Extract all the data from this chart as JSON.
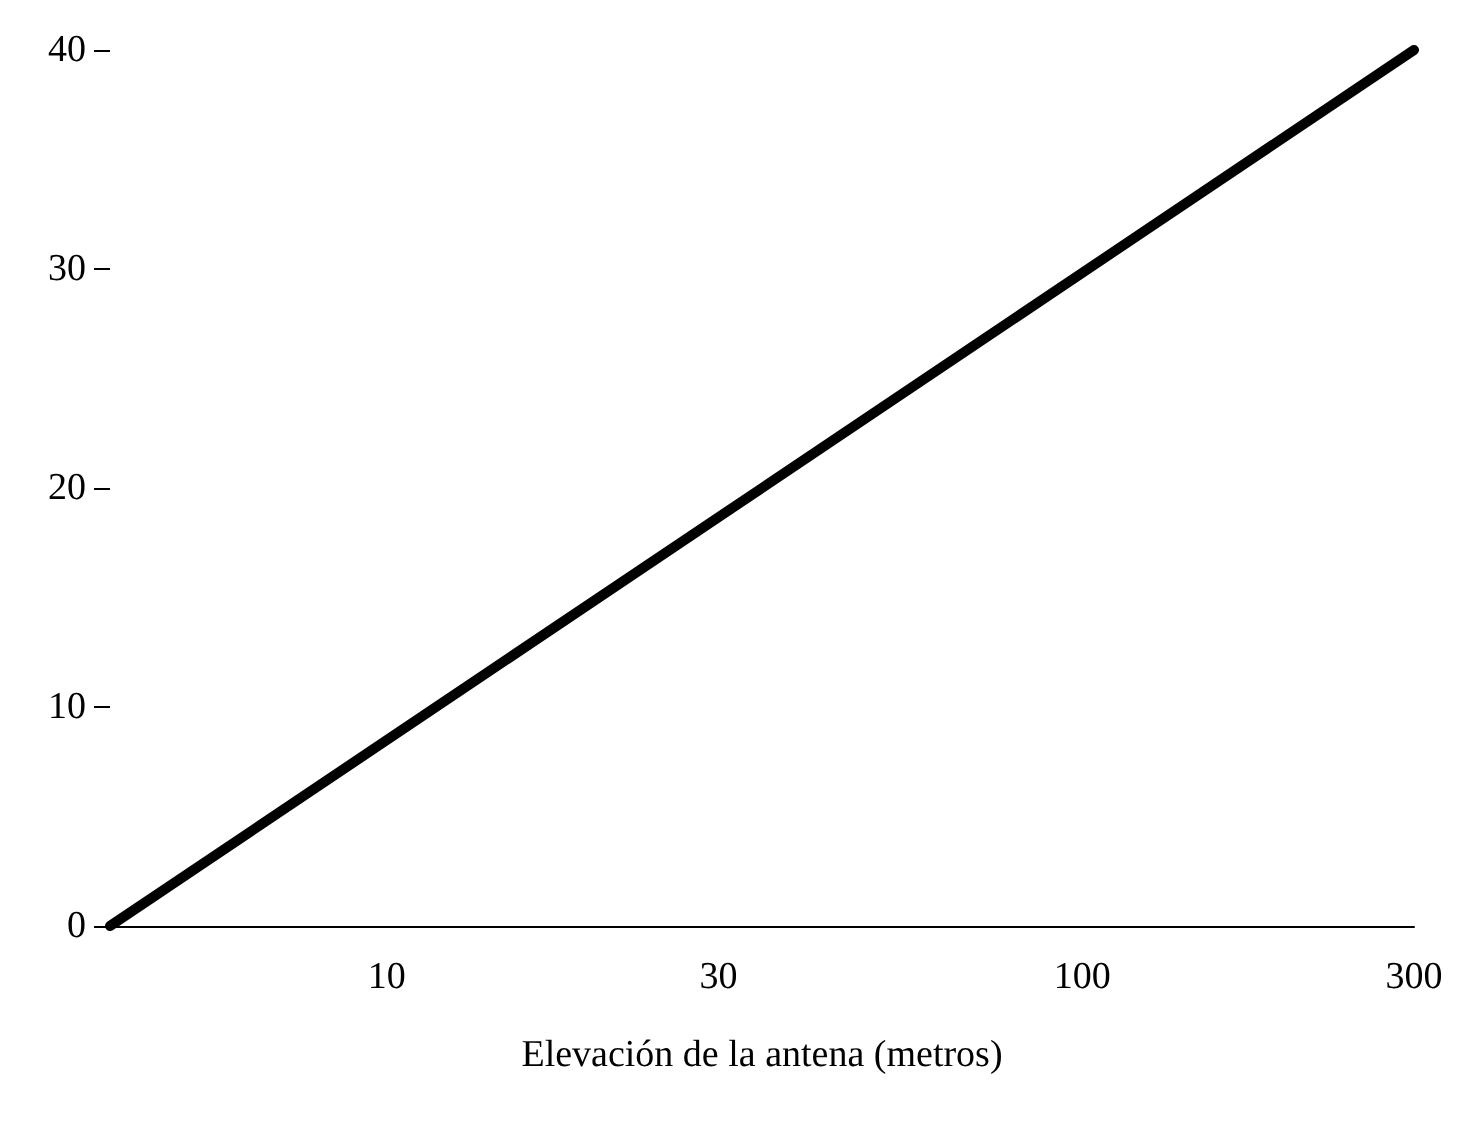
{
  "chart_data": {
    "type": "line",
    "xlabel": "Elevación de la antena (metros)",
    "log": "x",
    "series": [
      {
        "color": "#000000",
        "x": [
          4,
          300
        ],
        "values": [
          0,
          40
        ]
      }
    ],
    "xlim": [
      4,
      300
    ],
    "xticks": [
      10,
      30,
      100,
      300
    ],
    "ylim": [
      0,
      40
    ],
    "yticks": [
      0,
      10,
      20,
      30,
      40
    ],
    "grid": false,
    "marker": "none",
    "line_style": "solid"
  }
}
